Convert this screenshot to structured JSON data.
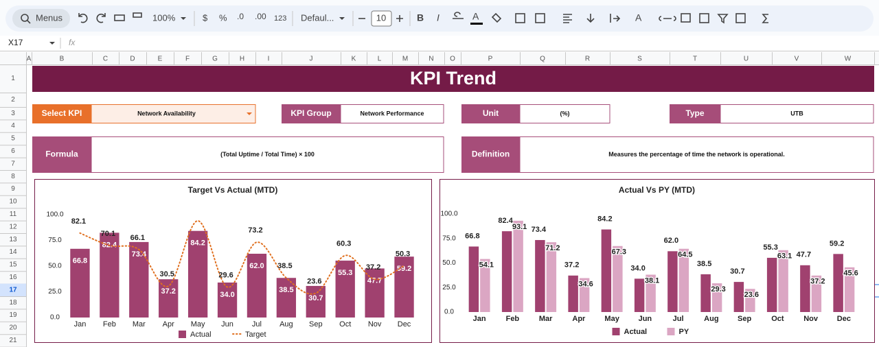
{
  "toolbar": {
    "search": "Menus",
    "zoom": "100%",
    "currency": "$",
    "percent": "%",
    "decrease_decimal": ".0",
    "increase_decimal": ".00",
    "number_format": "123",
    "font": "Defaul...",
    "font_size": "10",
    "bold": "B",
    "italic": "I",
    "text_color": "A",
    "text_rotation": "A"
  },
  "formula_bar": {
    "name_box": "X17",
    "fx": "fx"
  },
  "sheet": {
    "columns": [
      "A",
      "B",
      "C",
      "D",
      "E",
      "F",
      "G",
      "H",
      "I",
      "J",
      "K",
      "L",
      "M",
      "N",
      "O",
      "P",
      "Q",
      "R",
      "S",
      "T",
      "U",
      "V",
      "W"
    ],
    "rows": [
      "1",
      "2",
      "3",
      "4",
      "5",
      "6",
      "7",
      "8",
      "9",
      "10",
      "11",
      "12",
      "13",
      "14",
      "15",
      "16",
      "17",
      "18",
      "19",
      "20",
      "21"
    ],
    "title": "KPI Trend",
    "fields": [
      {
        "label": "Select KPI",
        "value": "Network Availability",
        "color": "#e8702a"
      },
      {
        "label": "KPI Group",
        "value": "Network Performance",
        "color": "#a64d79"
      },
      {
        "label": "Unit",
        "value": "(%)",
        "color": "#a64d79"
      },
      {
        "label": "Type",
        "value": "UTB",
        "color": "#a64d79"
      },
      {
        "label": "Formula",
        "value": "(Total Uptime / Total Time) × 100",
        "color": "#a64d79"
      },
      {
        "label": "Definition",
        "value": "Measures the percentage of time the network is operational.",
        "color": "#a64d79"
      }
    ]
  },
  "chart_data": [
    {
      "type": "bar",
      "title": "Target Vs Actual (MTD)",
      "categories": [
        "Jan",
        "Feb",
        "Mar",
        "Apr",
        "May",
        "Jun",
        "Jul",
        "Aug",
        "Sep",
        "Oct",
        "Nov",
        "Dec"
      ],
      "series": [
        {
          "name": "Actual",
          "type": "bar",
          "color": "#a0416f",
          "values": [
            66.8,
            82.4,
            73.4,
            37.2,
            84.2,
            34.0,
            62.0,
            38.5,
            30.7,
            55.3,
            47.7,
            59.2
          ],
          "value_labels": [
            "66.8",
            "82.4",
            "73.4",
            "37.2",
            "84.2",
            "34.0",
            "62.0",
            "38.5",
            "30.7",
            "55.3",
            "47.7",
            "59.2"
          ]
        },
        {
          "name": "Target",
          "type": "line",
          "dashed": true,
          "color": "#e07020",
          "values": [
            82.1,
            70.1,
            66.1,
            30.5,
            94,
            29.6,
            73.2,
            38.5,
            23.6,
            60.3,
            37.2,
            50.3
          ],
          "value_labels": [
            "82.1",
            "70.1",
            "66.1",
            "30.5",
            null,
            "29.6",
            "73.2",
            "38.5",
            "23.6",
            "60.3",
            "37.2",
            "50.3"
          ]
        }
      ],
      "ylim": [
        0,
        100
      ],
      "yticks": [
        {
          "value": 0,
          "label": "0.0"
        },
        {
          "value": 25,
          "label": "25.0"
        },
        {
          "value": 50,
          "label": "50.0"
        },
        {
          "value": 75,
          "label": "75.0"
        },
        {
          "value": 100,
          "label": "100.0"
        }
      ],
      "legend": "bottom"
    },
    {
      "type": "bar",
      "title": "Actual Vs PY (MTD)",
      "categories": [
        "Jan",
        "Feb",
        "Mar",
        "Apr",
        "May",
        "Jun",
        "Jul",
        "Aug",
        "Sep",
        "Oct",
        "Nov",
        "Dec"
      ],
      "series": [
        {
          "name": "Actual",
          "type": "bar",
          "color": "#a0416f",
          "values": [
            66.8,
            82.4,
            73.4,
            37.2,
            84.2,
            34.0,
            62.0,
            38.5,
            30.7,
            55.3,
            47.7,
            59.2
          ],
          "value_labels": [
            "66.8",
            "82.4",
            "73.4",
            "37.2",
            "84.2",
            "34.0",
            "62.0",
            "38.5",
            "30.7",
            "55.3",
            "47.7",
            "59.2"
          ]
        },
        {
          "name": "PY",
          "type": "bar",
          "color": "#dba6c3",
          "values": [
            54.1,
            93.1,
            71.2,
            34.6,
            67.3,
            38.1,
            64.5,
            29.3,
            23.6,
            63.1,
            37.2,
            45.6
          ],
          "value_labels": [
            "54.1",
            "93.1",
            "71.2",
            "34.6",
            "67.3",
            "38.1",
            "64.5",
            "29.3",
            "23.6",
            "63.1",
            "37.2",
            "45.6"
          ]
        }
      ],
      "ylim": [
        0,
        100
      ],
      "yticks": [
        {
          "value": 0,
          "label": "0.0"
        },
        {
          "value": 25,
          "label": "25.0"
        },
        {
          "value": 50,
          "label": "50.0"
        },
        {
          "value": 75,
          "label": "75.0"
        },
        {
          "value": 100,
          "label": "100.0"
        }
      ],
      "legend": "bottom"
    }
  ]
}
